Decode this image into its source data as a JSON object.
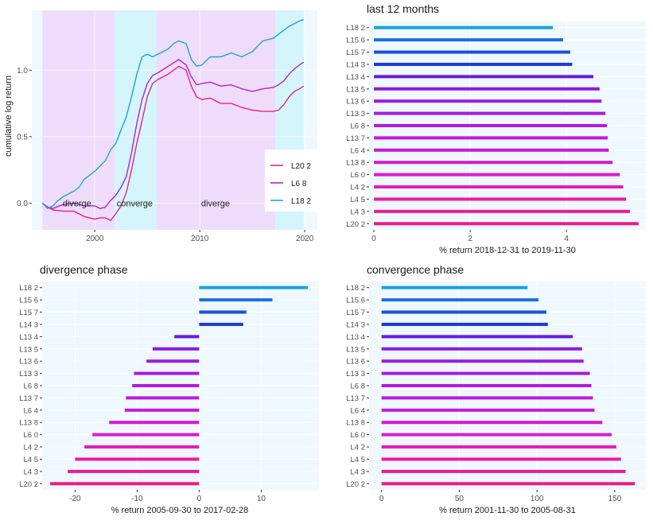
{
  "colors": {
    "panel_bg": "#eef8fe",
    "grid": "#ffffff",
    "diverge_band": "#efdcfb",
    "converge_band": "#d3f5fb",
    "axis_text": "#4d4d4d",
    "title_text": "#1a1a1a"
  },
  "chart_data": [
    {
      "id": "cumulative",
      "type": "line",
      "title": "",
      "xlabel": "",
      "ylabel": "cumulative log return",
      "xlim": [
        1994.0,
        2021.2
      ],
      "ylim": [
        -0.2,
        1.45
      ],
      "x_ticks": [
        2000,
        2010,
        2020
      ],
      "y_ticks": [
        0.0,
        0.5,
        1.0
      ],
      "x_tick_labels": [
        "2000",
        "2010",
        "2020"
      ],
      "y_tick_labels": [
        "0.0",
        "0.5",
        "1.0"
      ],
      "phases": [
        {
          "label": "diverge",
          "start": 1995.0,
          "end": 2001.9,
          "kind": "diverge",
          "label_x": 1998.3
        },
        {
          "label": "converge",
          "start": 2001.9,
          "end": 2005.9,
          "kind": "converge",
          "label_x": 2003.8
        },
        {
          "label": "diverge",
          "start": 2005.9,
          "end": 2017.2,
          "kind": "diverge",
          "label_x": 2011.5
        },
        {
          "label": "",
          "start": 2017.2,
          "end": 2019.9,
          "kind": "converge",
          "label_x": 2018.5
        }
      ],
      "phase_label_y": 0.0,
      "legend": {
        "position": "right",
        "entries": [
          "L20 2",
          "L6 8",
          "L18 2"
        ]
      },
      "series": [
        {
          "name": "L20 2",
          "color": "#ee1f87",
          "points": [
            [
              1995.0,
              0.0
            ],
            [
              1995.5,
              -0.03
            ],
            [
              1996,
              -0.05
            ],
            [
              1997,
              -0.06
            ],
            [
              1998,
              -0.06
            ],
            [
              1999,
              -0.1
            ],
            [
              2000,
              -0.12
            ],
            [
              2000.5,
              -0.11
            ],
            [
              2001,
              -0.11
            ],
            [
              2001.5,
              -0.13
            ],
            [
              2002,
              -0.08
            ],
            [
              2002.5,
              -0.02
            ],
            [
              2003,
              0.08
            ],
            [
              2003.5,
              0.25
            ],
            [
              2004,
              0.45
            ],
            [
              2004.5,
              0.62
            ],
            [
              2005,
              0.8
            ],
            [
              2005.5,
              0.9
            ],
            [
              2006,
              0.93
            ],
            [
              2007,
              0.97
            ],
            [
              2008,
              1.03
            ],
            [
              2008.7,
              1.0
            ],
            [
              2009.2,
              0.88
            ],
            [
              2009.7,
              0.8
            ],
            [
              2010.2,
              0.78
            ],
            [
              2011,
              0.79
            ],
            [
              2012,
              0.75
            ],
            [
              2013,
              0.75
            ],
            [
              2014,
              0.72
            ],
            [
              2015,
              0.7
            ],
            [
              2016,
              0.69
            ],
            [
              2017,
              0.69
            ],
            [
              2017.5,
              0.7
            ],
            [
              2018,
              0.74
            ],
            [
              2018.5,
              0.8
            ],
            [
              2019,
              0.84
            ],
            [
              2019.5,
              0.86
            ],
            [
              2019.9,
              0.88
            ]
          ]
        },
        {
          "name": "L6 8",
          "color": "#b420d7",
          "points": [
            [
              1995.0,
              0.0
            ],
            [
              1995.5,
              -0.03
            ],
            [
              1996,
              -0.04
            ],
            [
              1997,
              -0.01
            ],
            [
              1998,
              0.0
            ],
            [
              1999,
              -0.02
            ],
            [
              2000,
              -0.02
            ],
            [
              2000.5,
              -0.04
            ],
            [
              2001,
              -0.03
            ],
            [
              2001.5,
              0.02
            ],
            [
              2002,
              0.06
            ],
            [
              2002.5,
              0.12
            ],
            [
              2003,
              0.2
            ],
            [
              2003.5,
              0.38
            ],
            [
              2004,
              0.6
            ],
            [
              2004.5,
              0.78
            ],
            [
              2005,
              0.9
            ],
            [
              2005.5,
              0.96
            ],
            [
              2006,
              0.98
            ],
            [
              2007,
              1.03
            ],
            [
              2008,
              1.08
            ],
            [
              2008.7,
              1.04
            ],
            [
              2009.2,
              0.95
            ],
            [
              2009.7,
              0.89
            ],
            [
              2010.2,
              0.9
            ],
            [
              2011,
              0.91
            ],
            [
              2012,
              0.88
            ],
            [
              2013,
              0.89
            ],
            [
              2014,
              0.86
            ],
            [
              2015,
              0.84
            ],
            [
              2016,
              0.86
            ],
            [
              2017,
              0.87
            ],
            [
              2017.5,
              0.89
            ],
            [
              2018,
              0.92
            ],
            [
              2018.5,
              0.97
            ],
            [
              2019,
              1.01
            ],
            [
              2019.5,
              1.04
            ],
            [
              2019.9,
              1.06
            ]
          ]
        },
        {
          "name": "L18 2",
          "color": "#1aa3e0",
          "points": [
            [
              1995.0,
              0.0
            ],
            [
              1995.5,
              -0.04
            ],
            [
              1996,
              -0.02
            ],
            [
              1996.5,
              0.02
            ],
            [
              1997,
              0.05
            ],
            [
              1998,
              0.09
            ],
            [
              1998.5,
              0.12
            ],
            [
              1999,
              0.18
            ],
            [
              2000,
              0.24
            ],
            [
              2000.5,
              0.28
            ],
            [
              2001,
              0.32
            ],
            [
              2001.5,
              0.4
            ],
            [
              2002,
              0.45
            ],
            [
              2002.5,
              0.55
            ],
            [
              2003,
              0.65
            ],
            [
              2003.5,
              0.8
            ],
            [
              2004,
              0.97
            ],
            [
              2004.5,
              1.1
            ],
            [
              2005,
              1.12
            ],
            [
              2005.5,
              1.1
            ],
            [
              2006,
              1.12
            ],
            [
              2007,
              1.16
            ],
            [
              2007.5,
              1.2
            ],
            [
              2008,
              1.22
            ],
            [
              2008.7,
              1.2
            ],
            [
              2009.2,
              1.08
            ],
            [
              2009.7,
              1.03
            ],
            [
              2010.2,
              1.04
            ],
            [
              2011,
              1.1
            ],
            [
              2012,
              1.1
            ],
            [
              2013,
              1.13
            ],
            [
              2014,
              1.1
            ],
            [
              2015,
              1.14
            ],
            [
              2016,
              1.22
            ],
            [
              2017,
              1.24
            ],
            [
              2017.5,
              1.27
            ],
            [
              2018,
              1.3
            ],
            [
              2018.5,
              1.33
            ],
            [
              2019,
              1.35
            ],
            [
              2019.5,
              1.37
            ],
            [
              2019.9,
              1.38
            ]
          ]
        }
      ]
    },
    {
      "id": "last12",
      "type": "bar",
      "orientation": "horizontal",
      "title": "last 12 months",
      "xlabel": "% return 2018-12-31 to 2019-11-30",
      "ylabel": "",
      "xlim": [
        -0.1,
        5.65
      ],
      "x_ticks": [
        0,
        2,
        4
      ],
      "x_tick_labels": [
        "0",
        "2",
        "4"
      ],
      "categories": [
        "L18 2",
        "L15 6",
        "L15 7",
        "L14 3",
        "L13 4",
        "L13 5",
        "L13 6",
        "L13 3",
        "L6 8",
        "L13 7",
        "L6 4",
        "L13 8",
        "L6 0",
        "L4 2",
        "L4 5",
        "L4 3",
        "L20 2"
      ],
      "colors": [
        "#1aa3e0",
        "#1a6fdc",
        "#1a4fdc",
        "#1a3ad8",
        "#6a1ae0",
        "#8c1ae0",
        "#9e1ae0",
        "#a81ae0",
        "#b41ae0",
        "#bf1ae0",
        "#c61ad9",
        "#d11ad4",
        "#dd1acc",
        "#e61ab8",
        "#ec1aa6",
        "#ef1a96",
        "#ef1a86"
      ],
      "values": [
        3.72,
        3.93,
        4.08,
        4.12,
        4.56,
        4.69,
        4.73,
        4.81,
        4.84,
        4.86,
        4.88,
        4.96,
        5.11,
        5.18,
        5.24,
        5.32,
        5.5
      ]
    },
    {
      "id": "divergence",
      "type": "bar",
      "orientation": "horizontal",
      "title": "divergence phase",
      "xlabel": "% return 2005-09-30 to 2017-02-28",
      "ylabel": "",
      "xlim": [
        -25.3,
        19.3
      ],
      "x_ticks": [
        -20,
        -10,
        0,
        10
      ],
      "x_tick_labels": [
        "-20",
        "-10",
        "0",
        "10"
      ],
      "categories": [
        "L18 2",
        "L15 6",
        "L15 7",
        "L14 3",
        "L13 4",
        "L13 5",
        "L13 6",
        "L13 3",
        "L6 8",
        "L13 7",
        "L6 4",
        "L13 8",
        "L6 0",
        "L4 2",
        "L4 5",
        "L4 3",
        "L20 2"
      ],
      "colors": [
        "#1aa3e0",
        "#1a6fdc",
        "#1a4fdc",
        "#1a3ad8",
        "#6a1ae0",
        "#8c1ae0",
        "#9e1ae0",
        "#a81ae0",
        "#b41ae0",
        "#bf1ae0",
        "#c61ad9",
        "#d11ad4",
        "#dd1acc",
        "#e61ab8",
        "#ec1aa6",
        "#ef1a96",
        "#ef1a86"
      ],
      "values": [
        17.5,
        11.8,
        7.6,
        7.1,
        -4.0,
        -7.5,
        -8.5,
        -10.5,
        -10.8,
        -11.8,
        -12.0,
        -14.5,
        -17.2,
        -18.5,
        -20.0,
        -21.2,
        -24.0
      ]
    },
    {
      "id": "convergence",
      "type": "bar",
      "orientation": "horizontal",
      "title": "convergence phase",
      "xlabel": "% return 2001-11-30 to 2005-08-31",
      "ylabel": "",
      "xlim": [
        -8,
        170
      ],
      "x_ticks": [
        0,
        50,
        100,
        150
      ],
      "x_tick_labels": [
        "0",
        "50",
        "100",
        "150"
      ],
      "categories": [
        "L18 2",
        "L15 6",
        "L15 7",
        "L14 3",
        "L13 4",
        "L13 5",
        "L13 6",
        "L13 3",
        "L6 8",
        "L13 7",
        "L6 4",
        "L13 8",
        "L6 0",
        "L4 2",
        "L4 5",
        "L4 3",
        "L20 2"
      ],
      "colors": [
        "#1aa3e0",
        "#1a6fdc",
        "#1a4fdc",
        "#1a3ad8",
        "#6a1ae0",
        "#8c1ae0",
        "#9e1ae0",
        "#a81ae0",
        "#b41ae0",
        "#bf1ae0",
        "#c61ad9",
        "#d11ad4",
        "#dd1acc",
        "#e61ab8",
        "#ec1aa6",
        "#ef1a96",
        "#ef1a86"
      ],
      "values": [
        94,
        101,
        106,
        107,
        123,
        129,
        130,
        134,
        135,
        136,
        137,
        142,
        148,
        151,
        154,
        157,
        163
      ]
    }
  ]
}
